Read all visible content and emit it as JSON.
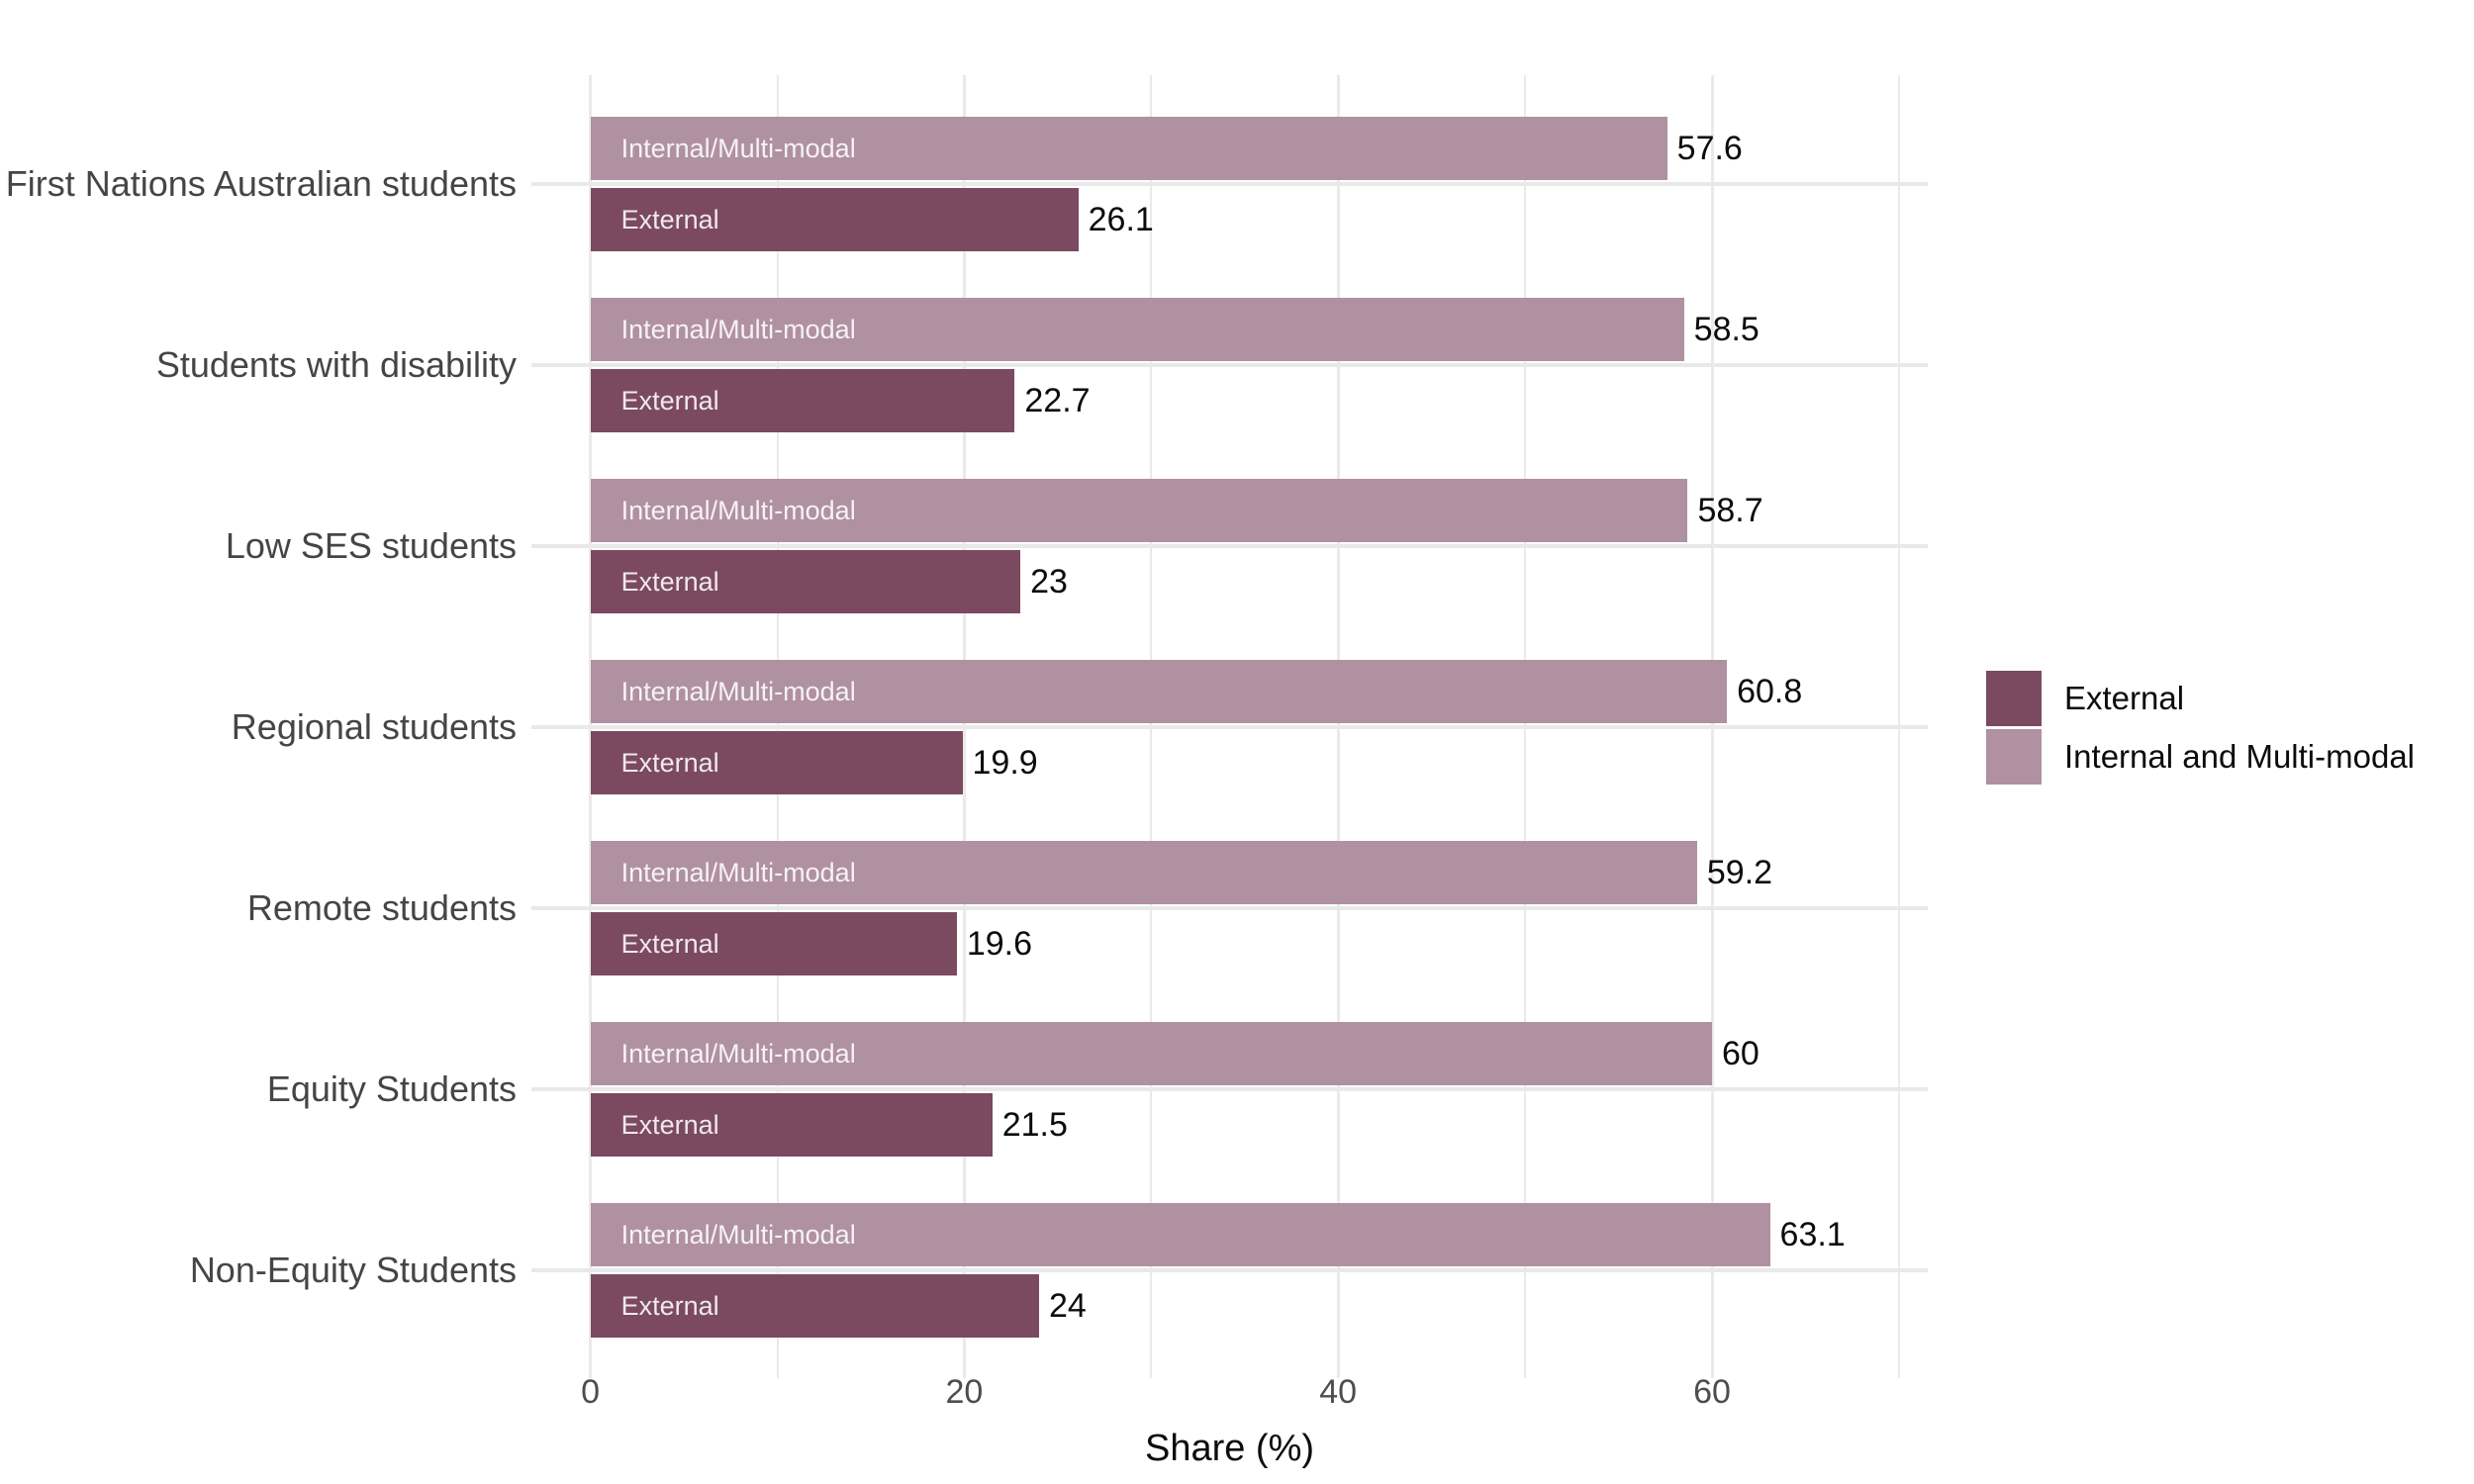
{
  "chart_data": {
    "type": "bar",
    "orientation": "horizontal",
    "xlabel": "Share (%)",
    "x_ticks": [
      0,
      20,
      40,
      60
    ],
    "x_minor_gridlines": [
      0,
      10,
      20,
      30,
      40,
      50,
      60,
      70
    ],
    "xlim": [
      0,
      70
    ],
    "grid": "on",
    "categories": [
      "First Nations Australian students",
      "Students with disability",
      "Low SES students",
      "Regional students",
      "Remote students",
      "Equity Students",
      "Non-Equity Students"
    ],
    "series": [
      {
        "name": "Internal and Multi-modal",
        "bar_label": "Internal/Multi-modal",
        "color": "#B091A1",
        "values": [
          57.6,
          58.5,
          58.7,
          60.8,
          59.2,
          60,
          63.1
        ],
        "value_labels": [
          "57.6",
          "58.5",
          "58.7",
          "60.8",
          "59.2",
          "60",
          "63.1"
        ]
      },
      {
        "name": "External",
        "bar_label": "External",
        "color": "#7B4A60",
        "values": [
          26.1,
          22.7,
          23,
          19.9,
          19.6,
          21.5,
          24
        ],
        "value_labels": [
          "26.1",
          "22.7",
          "23",
          "19.9",
          "19.6",
          "21.5",
          "24"
        ]
      }
    ],
    "legend": {
      "position": "right",
      "entries": [
        {
          "label": "External",
          "color": "#7B4A60"
        },
        {
          "label": "Internal and Multi-modal",
          "color": "#B091A1"
        }
      ]
    }
  }
}
